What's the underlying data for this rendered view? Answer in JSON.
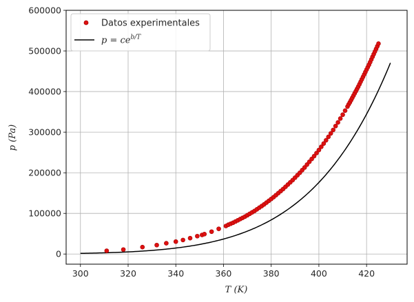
{
  "chart_data": {
    "type": "scatter",
    "title": "",
    "xlabel": "T (K)",
    "ylabel": "p (Pa)",
    "xlim": [
      294,
      437
    ],
    "ylim": [
      -25000,
      600000
    ],
    "xticks": [
      300,
      320,
      340,
      360,
      380,
      400,
      420
    ],
    "yticks": [
      0,
      100000,
      200000,
      300000,
      400000,
      500000,
      600000
    ],
    "grid": true,
    "legend_position": "top-left",
    "colors": {
      "points": "#dd1111",
      "points_edge": "#aa0000",
      "fit": "#000000",
      "grid": "#b0b0b0",
      "axis": "#000000"
    },
    "series": [
      {
        "name": "Datos experimentales",
        "kind": "scatter",
        "x": [
          311,
          318,
          326,
          332,
          336,
          340,
          343,
          346,
          349,
          351,
          352,
          355,
          358,
          361,
          362,
          363,
          364,
          365,
          366,
          367,
          368,
          369,
          370,
          371,
          372,
          373,
          374,
          375,
          376,
          377,
          378,
          379,
          380,
          381,
          382,
          383,
          384,
          385,
          386,
          387,
          388,
          389,
          390,
          391,
          392,
          393,
          394,
          395,
          396,
          397,
          398,
          399,
          400,
          401,
          402,
          403,
          404,
          405,
          406,
          407,
          408,
          409,
          410,
          411,
          412,
          412.5,
          413,
          413.5,
          414,
          414.5,
          415,
          415.5,
          416,
          416.5,
          417,
          417.5,
          418,
          418.5,
          419,
          419.5,
          420,
          420.5,
          421,
          421.5,
          422,
          422.5,
          423,
          423.5,
          424,
          424.5,
          425
        ],
        "y": [
          8000,
          11000,
          17000,
          22000,
          26500,
          30500,
          34500,
          39000,
          44000,
          47000,
          49000,
          55000,
          62000,
          69000,
          72000,
          74500,
          77000,
          80000,
          83000,
          86000,
          89000,
          92000,
          95500,
          99000,
          102500,
          106000,
          110000,
          114000,
          118000,
          122000,
          126500,
          131000,
          135500,
          140000,
          145000,
          150000,
          155000,
          160000,
          165500,
          171000,
          176500,
          182000,
          188000,
          194000,
          200000,
          206500,
          213000,
          220000,
          227000,
          234000,
          241000,
          248500,
          256000,
          264000,
          272000,
          280000,
          288500,
          297000,
          305500,
          315000,
          324000,
          333500,
          343000,
          353000,
          363000,
          368500,
          373500,
          379000,
          384500,
          390000,
          395500,
          401000,
          406500,
          412000,
          418000,
          424000,
          430000,
          436000,
          442000,
          448000,
          454000,
          460000,
          466000,
          472500,
          479000,
          485500,
          492000,
          498500,
          505000,
          511500,
          518000
        ]
      },
      {
        "name": "p = ce^{b/T}",
        "kind": "line",
        "model": {
          "c": 229460000000.0,
          "b": -5631.87
        },
        "x_range": [
          300,
          430
        ]
      }
    ]
  },
  "legend": {
    "entries": [
      {
        "label": "Datos experimentales"
      },
      {
        "label_prefix": "p = ce",
        "label_sup": "b/T"
      }
    ]
  }
}
